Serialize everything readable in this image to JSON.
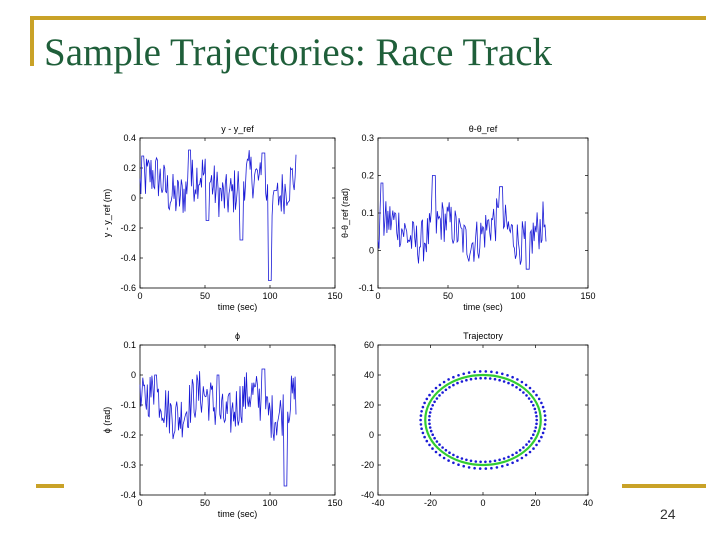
{
  "slide": {
    "title": "Sample Trajectories: Race Track",
    "page_number": "24",
    "accent_color": "#c9a227",
    "title_color": "#1f5f3a",
    "line_color": "#1a1ad6",
    "track_color": "#33cc33"
  },
  "chart_data": [
    {
      "type": "line",
      "title": "y - y_ref",
      "xlabel": "time (sec)",
      "ylabel": "y - y_ref (m)",
      "xlim": [
        0,
        150
      ],
      "ylim": [
        -0.6,
        0.4
      ],
      "xticks": [
        0,
        50,
        100,
        150
      ],
      "yticks": [
        0.4,
        0.2,
        0,
        -0.2,
        -0.4,
        -0.6
      ],
      "x_range": [
        0,
        120
      ],
      "series": [
        {
          "values_summary": "noisy signal, mostly between -0.2 and 0.3, dips to about -0.55 near t=100"
        }
      ]
    },
    {
      "type": "line",
      "title": "θ-θ_ref",
      "xlabel": "time (sec)",
      "ylabel": "θ-θ_ref (rad)",
      "xlim": [
        0,
        150
      ],
      "ylim": [
        -0.1,
        0.3
      ],
      "xticks": [
        0,
        50,
        100,
        150
      ],
      "yticks": [
        0.3,
        0.2,
        0.1,
        0,
        -0.1
      ],
      "x_range": [
        0,
        120
      ],
      "series": [
        {
          "values_summary": "noisy signal mostly between -0.05 and 0.15, peaks near 0.2"
        }
      ]
    },
    {
      "type": "line",
      "title": "ϕ",
      "xlabel": "time (sec)",
      "ylabel": "ϕ (rad)",
      "xlim": [
        0,
        150
      ],
      "ylim": [
        -0.4,
        0.1
      ],
      "xticks": [
        0,
        50,
        100,
        150
      ],
      "yticks": [
        0.1,
        0,
        -0.1,
        -0.2,
        -0.3,
        -0.4
      ],
      "x_range": [
        0,
        120
      ],
      "series": [
        {
          "values_summary": "noisy signal mostly between -0.25 and 0.0, min about -0.37 near t=112"
        }
      ]
    },
    {
      "type": "line",
      "title": "Trajectory",
      "xlim": [
        -40,
        40
      ],
      "ylim": [
        -40,
        60
      ],
      "xticks": [
        -40,
        -20,
        0,
        20,
        40
      ],
      "yticks": [
        60,
        40,
        20,
        0,
        -20,
        -40
      ],
      "track": {
        "center": [
          0,
          10
        ],
        "rx": 22,
        "ry": 30
      }
    }
  ]
}
